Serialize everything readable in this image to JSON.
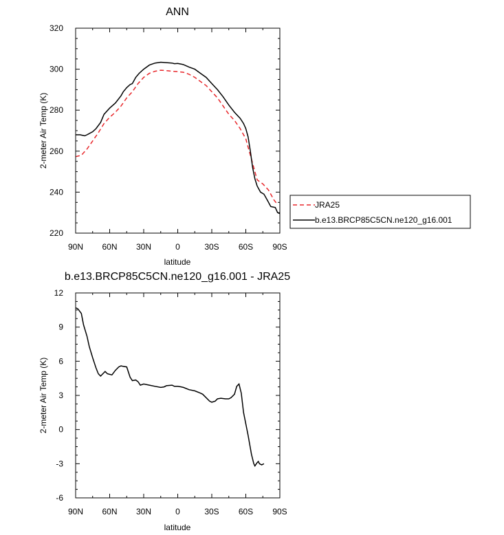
{
  "chart_data": [
    {
      "type": "line",
      "title": "ANN",
      "xlabel": "latitude",
      "ylabel": "2-meter Air Temp (K)",
      "xlim": [
        90,
        -90
      ],
      "ylim": [
        220,
        320
      ],
      "xticks": [
        {
          "value": 90,
          "label": "90N"
        },
        {
          "value": 60,
          "label": "60N"
        },
        {
          "value": 30,
          "label": "30N"
        },
        {
          "value": 0,
          "label": "0"
        },
        {
          "value": -30,
          "label": "30S"
        },
        {
          "value": -60,
          "label": "60S"
        },
        {
          "value": -90,
          "label": "90S"
        }
      ],
      "yticks": [
        220,
        240,
        260,
        280,
        300,
        320
      ],
      "grid": false,
      "legend_position": "right",
      "series": [
        {
          "name": "JRA25",
          "color": "#e8262a",
          "dash": "dashed",
          "points": [
            [
              90,
              257.3
            ],
            [
              85,
              258
            ],
            [
              80,
              261
            ],
            [
              75,
              265
            ],
            [
              70,
              269
            ],
            [
              65,
              273.5
            ],
            [
              60,
              276.5
            ],
            [
              55,
              279
            ],
            [
              50,
              282
            ],
            [
              45,
              286
            ],
            [
              40,
              289
            ],
            [
              35,
              293
            ],
            [
              30,
              296
            ],
            [
              25,
              298
            ],
            [
              20,
              299
            ],
            [
              15,
              299.5
            ],
            [
              10,
              299.3
            ],
            [
              5,
              299
            ],
            [
              0,
              298.8
            ],
            [
              -5,
              298.5
            ],
            [
              -10,
              297.5
            ],
            [
              -15,
              296
            ],
            [
              -20,
              294
            ],
            [
              -25,
              292
            ],
            [
              -30,
              289
            ],
            [
              -35,
              286
            ],
            [
              -40,
              282
            ],
            [
              -45,
              278
            ],
            [
              -50,
              275
            ],
            [
              -55,
              271
            ],
            [
              -60,
              266
            ],
            [
              -62,
              262
            ],
            [
              -65,
              256
            ],
            [
              -68,
              250
            ],
            [
              -70,
              246
            ],
            [
              -75,
              244
            ],
            [
              -80,
              241
            ],
            [
              -82,
              239
            ],
            [
              -85,
              236
            ],
            [
              -88,
              234
            ]
          ]
        },
        {
          "name": "b.e13.BRCP85C5CN.ne120_g16.001",
          "color": "#000000",
          "dash": "solid",
          "points": [
            [
              90,
              268
            ],
            [
              86,
              268
            ],
            [
              82,
              267.5
            ],
            [
              80,
              268
            ],
            [
              75,
              269.5
            ],
            [
              72,
              271
            ],
            [
              68,
              274
            ],
            [
              65,
              278
            ],
            [
              60,
              281
            ],
            [
              55,
              283.5
            ],
            [
              50,
              287
            ],
            [
              48,
              289
            ],
            [
              45,
              291
            ],
            [
              42,
              292.5
            ],
            [
              40,
              293
            ],
            [
              37,
              296
            ],
            [
              34,
              298
            ],
            [
              30,
              300
            ],
            [
              25,
              302
            ],
            [
              20,
              303
            ],
            [
              15,
              303.4
            ],
            [
              10,
              303.2
            ],
            [
              5,
              303
            ],
            [
              3,
              302.7
            ],
            [
              0,
              302.8
            ],
            [
              -3,
              302.5
            ],
            [
              -5,
              302.2
            ],
            [
              -10,
              301
            ],
            [
              -15,
              300
            ],
            [
              -20,
              298
            ],
            [
              -25,
              296
            ],
            [
              -30,
              293
            ],
            [
              -35,
              290
            ],
            [
              -40,
              286.5
            ],
            [
              -45,
              282.5
            ],
            [
              -50,
              279
            ],
            [
              -55,
              276
            ],
            [
              -58,
              273.5
            ],
            [
              -60,
              271
            ],
            [
              -62,
              267
            ],
            [
              -64,
              260
            ],
            [
              -66,
              252
            ],
            [
              -68,
              246.5
            ],
            [
              -70,
              243
            ],
            [
              -73,
              240
            ],
            [
              -76,
              239
            ],
            [
              -79,
              236
            ],
            [
              -82,
              233
            ],
            [
              -86,
              232.5
            ],
            [
              -88,
              230
            ],
            [
              -90,
              229.5
            ]
          ]
        }
      ]
    },
    {
      "type": "line",
      "title": "b.e13.BRCP85C5CN.ne120_g16.001 - JRA25",
      "xlabel": "latitude",
      "ylabel": "2-meter Air Temp (K)",
      "xlim": [
        90,
        -90
      ],
      "ylim": [
        -6,
        12
      ],
      "xticks": [
        {
          "value": 90,
          "label": "90N"
        },
        {
          "value": 60,
          "label": "60N"
        },
        {
          "value": 30,
          "label": "30N"
        },
        {
          "value": 0,
          "label": "0"
        },
        {
          "value": -30,
          "label": "30S"
        },
        {
          "value": -60,
          "label": "60S"
        },
        {
          "value": -90,
          "label": "90S"
        }
      ],
      "yticks": [
        -6,
        -3,
        0,
        3,
        6,
        9,
        12
      ],
      "grid": false,
      "series": [
        {
          "color": "#000000",
          "dash": "solid",
          "points": [
            [
              90,
              10.7
            ],
            [
              88,
              10.6
            ],
            [
              85,
              10.2
            ],
            [
              83,
              9.2
            ],
            [
              80,
              8.2
            ],
            [
              78,
              7.3
            ],
            [
              75,
              6.3
            ],
            [
              72,
              5.4
            ],
            [
              70,
              4.9
            ],
            [
              68,
              4.7
            ],
            [
              66,
              4.9
            ],
            [
              64,
              5.1
            ],
            [
              62,
              4.9
            ],
            [
              60,
              4.85
            ],
            [
              58,
              4.8
            ],
            [
              55,
              5.2
            ],
            [
              52,
              5.5
            ],
            [
              50,
              5.6
            ],
            [
              48,
              5.55
            ],
            [
              45,
              5.5
            ],
            [
              42,
              4.6
            ],
            [
              40,
              4.3
            ],
            [
              37,
              4.35
            ],
            [
              35,
              4.2
            ],
            [
              33,
              3.9
            ],
            [
              30,
              4.0
            ],
            [
              25,
              3.9
            ],
            [
              20,
              3.8
            ],
            [
              15,
              3.7
            ],
            [
              12,
              3.75
            ],
            [
              10,
              3.85
            ],
            [
              5,
              3.9
            ],
            [
              3,
              3.8
            ],
            [
              0,
              3.8
            ],
            [
              -3,
              3.75
            ],
            [
              -5,
              3.7
            ],
            [
              -10,
              3.5
            ],
            [
              -15,
              3.4
            ],
            [
              -20,
              3.2
            ],
            [
              -22,
              3.1
            ],
            [
              -25,
              2.8
            ],
            [
              -28,
              2.5
            ],
            [
              -30,
              2.4
            ],
            [
              -33,
              2.5
            ],
            [
              -35,
              2.7
            ],
            [
              -38,
              2.75
            ],
            [
              -42,
              2.7
            ],
            [
              -45,
              2.7
            ],
            [
              -47,
              2.8
            ],
            [
              -50,
              3.1
            ],
            [
              -52,
              3.8
            ],
            [
              -54,
              4.0
            ],
            [
              -56,
              3.2
            ],
            [
              -58,
              1.5
            ],
            [
              -62,
              -0.5
            ],
            [
              -65,
              -2.2
            ],
            [
              -67,
              -3.0
            ],
            [
              -68,
              -3.2
            ],
            [
              -70,
              -2.9
            ],
            [
              -71,
              -2.8
            ],
            [
              -72,
              -3.0
            ],
            [
              -74,
              -3.1
            ],
            [
              -76,
              -3.0
            ]
          ]
        }
      ]
    }
  ]
}
